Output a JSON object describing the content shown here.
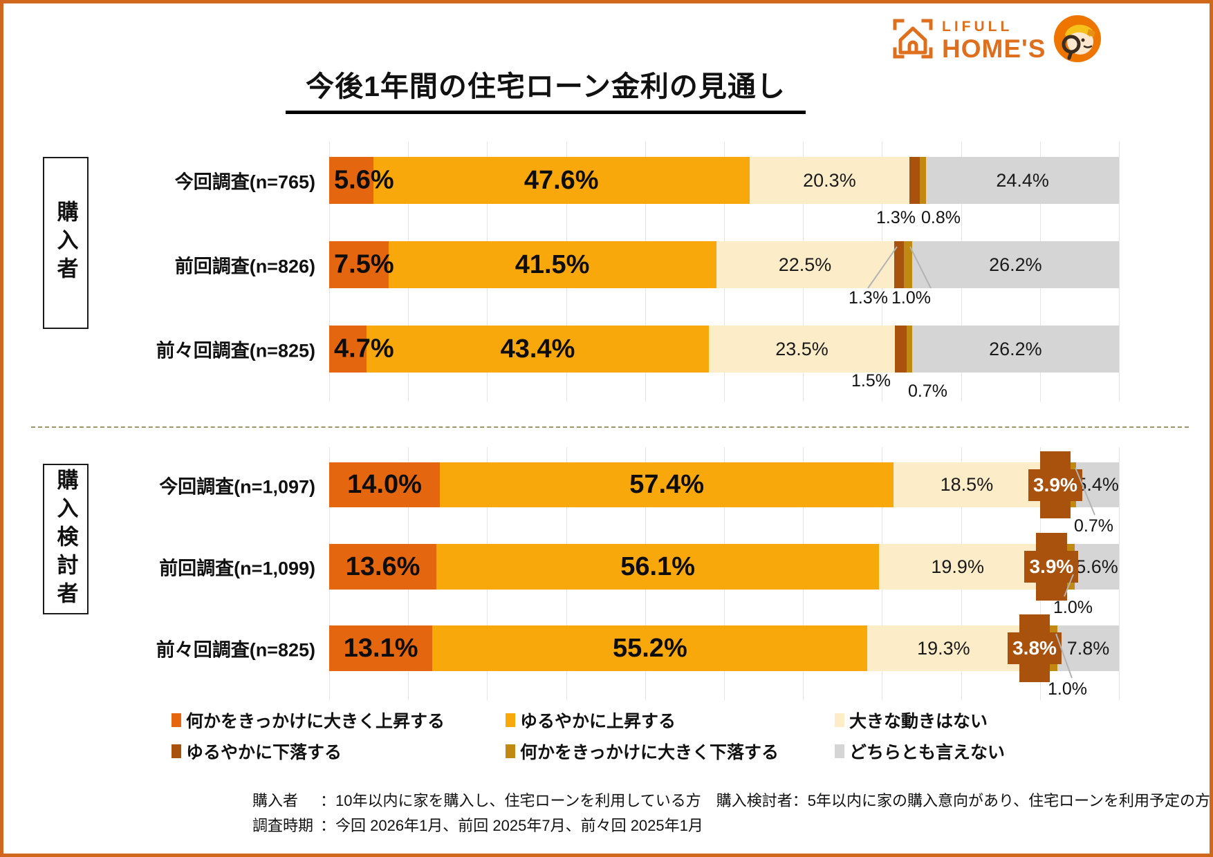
{
  "title": "今後1年間の住宅ローン金利の見通し",
  "logo": {
    "brand_line1": "LIFULL",
    "brand_line2": "HOME'S",
    "color": "#dd6f1e",
    "icon": "house-brackets-icon",
    "mascot": "homes-mascot-icon"
  },
  "chart_data": {
    "type": "bar",
    "stacked": true,
    "orientation": "horizontal",
    "unit": "%",
    "xlim": [
      0,
      100
    ],
    "grid": true,
    "legend_position": "bottom",
    "title": "今後1年間の住宅ローン金利の見通し",
    "categories": [
      {
        "label": "何かをきっかけに大きく上昇する",
        "color": "#e4660e"
      },
      {
        "label": "ゆるやかに上昇する",
        "color": "#f9a80b"
      },
      {
        "label": "大きな動きはない",
        "color": "#fcecc8"
      },
      {
        "label": "ゆるやかに下落する",
        "color": "#a8520e"
      },
      {
        "label": "何かをきっかけに大きく下落する",
        "color": "#c1890f"
      },
      {
        "label": "どちらとも言えない",
        "color": "#d5d5d5"
      }
    ],
    "groups": [
      {
        "name": "購入者",
        "rows": [
          {
            "label": "今回調査(n=765)",
            "values": [
              5.6,
              47.6,
              20.3,
              1.3,
              0.8,
              24.4
            ]
          },
          {
            "label": "前回調査(n=826)",
            "values": [
              7.5,
              41.5,
              22.5,
              1.3,
              1.0,
              26.2
            ]
          },
          {
            "label": "前々回調査(n=825)",
            "values": [
              4.7,
              43.4,
              23.5,
              1.5,
              0.7,
              26.2
            ]
          }
        ]
      },
      {
        "name": "購入検討者",
        "rows": [
          {
            "label": "今回調査(n=1,097)",
            "values": [
              14.0,
              57.4,
              18.5,
              3.9,
              0.7,
              5.4
            ]
          },
          {
            "label": "前回調査(n=1,099)",
            "values": [
              13.6,
              56.1,
              19.9,
              3.9,
              1.0,
              5.6
            ]
          },
          {
            "label": "前々回調査(n=825)",
            "values": [
              13.1,
              55.2,
              19.3,
              3.8,
              1.0,
              7.8
            ]
          }
        ]
      }
    ]
  },
  "footer": {
    "line1_label": "購入者",
    "line1_text": "：10年以内に家を購入し、住宅ローンを利用している方　購入検討者：5年以内に家の購入意向があり、住宅ローンを利用予定の方",
    "line2_label": "調査時期",
    "line2_text": "：今回 2026年1月、前回 2025年7月、前々回 2025年1月"
  }
}
